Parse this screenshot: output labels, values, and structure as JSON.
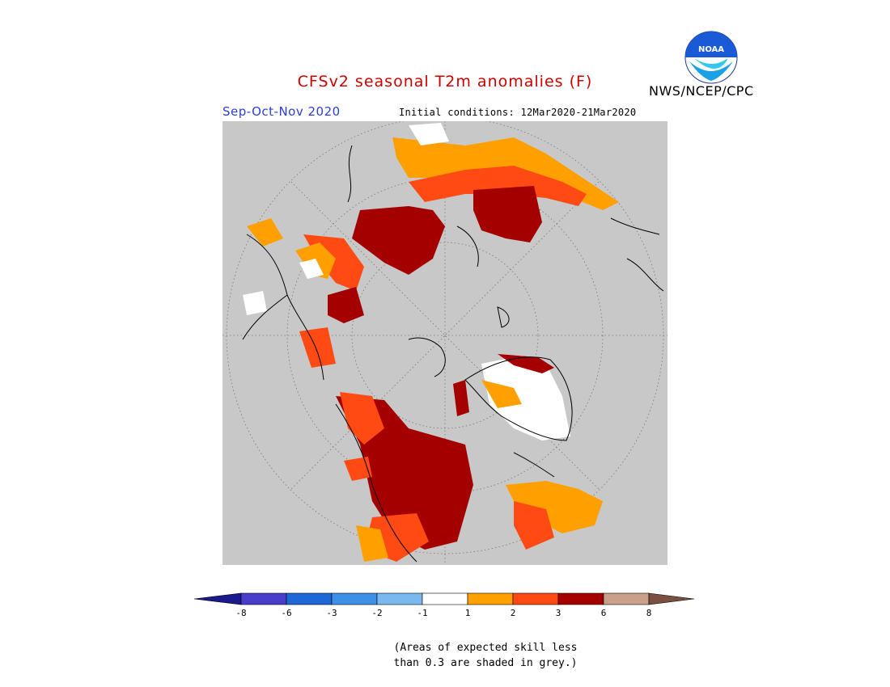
{
  "header": {
    "title": "CFSv2 seasonal T2m anomalies (F)",
    "agency": "NWS/NCEP/CPC",
    "logo_text": "NOAA",
    "season": "Sep-Oct-Nov 2020",
    "initial_conditions": "Initial conditions: 12Mar2020-21Mar2020"
  },
  "colors": {
    "title": "#cc0000",
    "season": "#2b3fd6",
    "map_background": "#c8c8c8",
    "coastline": "#000000"
  },
  "legend": {
    "ticks": [
      "-8",
      "-6",
      "-3",
      "-2",
      "-1",
      "1",
      "2",
      "3",
      "6",
      "8"
    ],
    "bins": [
      {
        "range": "< -8",
        "color": "#1a1a8c"
      },
      {
        "range": "-8 to -6",
        "color": "#4a3dcc"
      },
      {
        "range": "-6 to -3",
        "color": "#1f66d6"
      },
      {
        "range": "-3 to -2",
        "color": "#3d8fe8"
      },
      {
        "range": "-2 to -1",
        "color": "#7ab8f0"
      },
      {
        "range": "-1 to 1",
        "color": "#ffffff"
      },
      {
        "range": "1 to 2",
        "color": "#ffa000"
      },
      {
        "range": "2 to 3",
        "color": "#ff4a14"
      },
      {
        "range": "3 to 6",
        "color": "#a50000"
      },
      {
        "range": "6 to 8",
        "color": "#c9a08a"
      },
      {
        "range": "> 8",
        "color": "#7a5040"
      }
    ]
  },
  "note": {
    "line1": "(Areas of expected skill less",
    "line2": "than 0.3 are shaded in grey.)"
  }
}
